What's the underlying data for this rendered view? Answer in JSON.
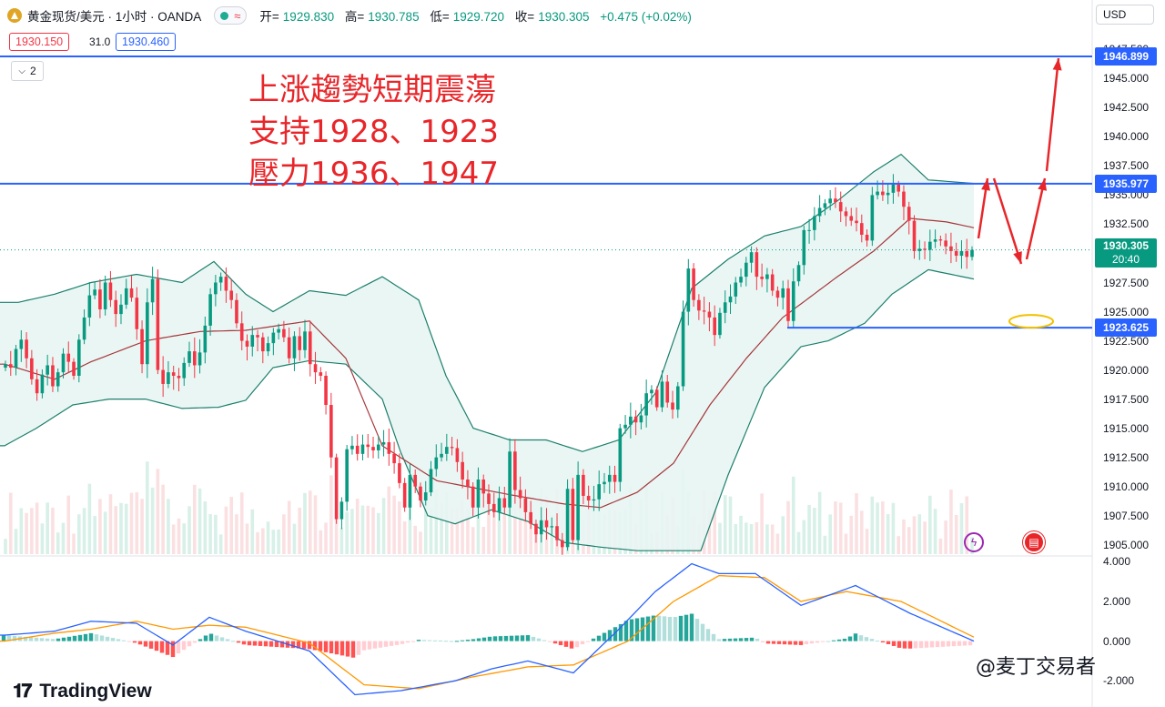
{
  "header": {
    "symbol": "黄金现货/美元 · 1小时 · OANDA",
    "open_label": "开=",
    "open": "1929.830",
    "high_label": "高=",
    "high": "1930.785",
    "low_label": "低=",
    "low": "1929.720",
    "close_label": "收=",
    "close": "1930.305",
    "change": "+0.475 (+0.02%)",
    "bid": "1930.150",
    "spread": "31.0",
    "ask": "1930.460",
    "indicator_count": "2",
    "currency": "USD"
  },
  "annotation": {
    "line1": "上涨趨勢短期震蕩",
    "line2": "支持1928、1923",
    "line3": "壓力1936、1947"
  },
  "price_labels": {
    "resistance_high": "1946.899",
    "resistance": "1935.977",
    "current": "1930.305",
    "countdown": "20:40",
    "support": "1923.625"
  },
  "watermark": "@麦丁交易者",
  "logo_text": "TradingView",
  "colors": {
    "up": "#089981",
    "down": "#f23645",
    "bollinger_fill": "#e8f5f3",
    "bollinger_band": "#1b7f6c",
    "bollinger_mid": "#a5373b",
    "level_line": "#2962ff",
    "annotation": "#e8262a",
    "macd_line": "#2962ff",
    "signal_line": "#ff9800"
  },
  "chart_data": [
    {
      "type": "candlestick",
      "title": "黄金现货/美元 · 1小时 · OANDA",
      "y_ticks": [
        "1947.500",
        "1945.000",
        "1942.500",
        "1940.000",
        "1937.500",
        "1935.000",
        "1932.500",
        "1930.000",
        "1927.500",
        "1925.000",
        "1922.500",
        "1920.000",
        "1917.500",
        "1915.000",
        "1912.500",
        "1910.000",
        "1907.500",
        "1905.000"
      ],
      "ylim": [
        1904.2,
        1947.6
      ],
      "closes": [
        1920.5,
        1920.2,
        1921.8,
        1922.6,
        1921.0,
        1919.2,
        1918.0,
        1919.6,
        1920.4,
        1918.6,
        1919.8,
        1921.4,
        1920.7,
        1919.5,
        1922.6,
        1924.5,
        1926.4,
        1926.9,
        1925.2,
        1927.5,
        1926.0,
        1924.8,
        1925.6,
        1927.0,
        1926.2,
        1923.5,
        1920.5,
        1925.8,
        1927.8,
        1920.0,
        1918.8,
        1919.8,
        1919.5,
        1919.3,
        1920.6,
        1921.6,
        1920.4,
        1921.5,
        1923.8,
        1926.5,
        1927.5,
        1928.0,
        1926.8,
        1926.0,
        1924.0,
        1922.5,
        1922.0,
        1923.0,
        1922.8,
        1921.6,
        1922.3,
        1923.2,
        1923.5,
        1922.8,
        1921.0,
        1922.9,
        1921.7,
        1923.3,
        1920.5,
        1919.8,
        1919.5,
        1917.0,
        1912.5,
        1907.2,
        1908.7,
        1913.2,
        1913.5,
        1912.8,
        1913.6,
        1913.4,
        1913.1,
        1913.6,
        1913.8,
        1912.8,
        1912.0,
        1910.3,
        1908.2,
        1911.0,
        1910.0,
        1908.8,
        1909.5,
        1911.5,
        1912.5,
        1912.8,
        1913.4,
        1913.3,
        1912.1,
        1910.6,
        1910.0,
        1908.2,
        1910.6,
        1909.4,
        1908.5,
        1907.8,
        1909.0,
        1908.2,
        1913.0,
        1909.7,
        1909.0,
        1907.8,
        1906.8,
        1905.9,
        1907.1,
        1906.5,
        1906.6,
        1905.4,
        1904.8,
        1909.8,
        1905.4,
        1911.0,
        1909.2,
        1908.8,
        1908.9,
        1910.2,
        1910.4,
        1911.0,
        1910.4,
        1915.0,
        1915.3,
        1916.0,
        1915.5,
        1916.1,
        1918.0,
        1918.3,
        1916.8,
        1919.0,
        1917.2,
        1916.6,
        1918.6,
        1925.0,
        1928.7,
        1926.0,
        1925.1,
        1925.0,
        1924.5,
        1923.0,
        1924.9,
        1925.8,
        1926.3,
        1927.5,
        1928.0,
        1929.2,
        1930.1,
        1928.0,
        1927.8,
        1928.2,
        1926.8,
        1926.2,
        1927.0,
        1924.2,
        1927.6,
        1929.0,
        1932.0,
        1932.0,
        1933.2,
        1933.9,
        1934.3,
        1934.7,
        1934.4,
        1933.6,
        1933.2,
        1932.8,
        1932.6,
        1931.6,
        1931.1,
        1935.0,
        1935.3,
        1935.0,
        1935.2,
        1935.9,
        1935.3,
        1934.0,
        1932.8,
        1930.2,
        1930.4,
        1930.3,
        1931.0,
        1931.2,
        1931.1,
        1930.6,
        1930.2,
        1929.8,
        1930.2,
        1929.7,
        1930.3
      ],
      "bollinger": {
        "upper_at_x": {
          "5": 1925.8,
          "20": 1925.8,
          "60": 1926.5,
          "100": 1927.5,
          "150": 1928.2,
          "200": 1927.5,
          "235": 1929.3,
          "270": 1926.5,
          "300": 1925.0,
          "340": 1926.8,
          "380": 1926.4,
          "420": 1928.0,
          "460": 1926.0,
          "490": 1919.5,
          "520": 1915.0,
          "560": 1914.0,
          "600": 1914.0,
          "640": 1913.0,
          "680": 1914.0,
          "720": 1918.0,
          "760": 1927.0,
          "800": 1929.5,
          "840": 1931.5,
          "880": 1932.3,
          "920": 1934.5,
          "960": 1937.0,
          "990": 1938.5,
          "1020": 1936.3,
          "1070": 1936.0
        },
        "lower_at_x": {
          "5": 1913.5,
          "40": 1915.0,
          "80": 1917.0,
          "120": 1917.5,
          "160": 1917.5,
          "200": 1916.7,
          "240": 1916.8,
          "270": 1917.4,
          "300": 1920.2,
          "340": 1920.8,
          "380": 1920.5,
          "420": 1917.5,
          "440": 1913.0,
          "470": 1907.5,
          "500": 1906.8,
          "540": 1908.0,
          "580": 1907.0,
          "620": 1905.2,
          "660": 1904.8,
          "700": 1904.5,
          "740": 1904.5,
          "770": 1904.5,
          "800": 1911.0,
          "840": 1918.5,
          "880": 1922.0,
          "910": 1922.5,
          "950": 1924.0,
          "980": 1926.5,
          "1020": 1928.6,
          "1070": 1927.8
        },
        "mid_at_x": {
          "5": 1920.5,
          "60": 1919.2,
          "100": 1920.7,
          "160": 1922.5,
          "220": 1923.3,
          "270": 1923.4,
          "340": 1924.2,
          "380": 1921.0,
          "420": 1913.5,
          "480": 1910.5,
          "560": 1909.3,
          "620": 1908.5,
          "660": 1908.2,
          "700": 1909.5,
          "740": 1912.0,
          "780": 1917.0,
          "820": 1921.0,
          "860": 1924.5,
          "920": 1928.0,
          "960": 1930.2,
          "1000": 1933.0,
          "1040": 1932.7,
          "1070": 1932.2
        }
      },
      "volume_note": "light-colored volume histogram behind candles"
    },
    {
      "type": "line",
      "title": "MACD",
      "y_ticks": [
        "4.000",
        "2.000",
        "0.000",
        "-2.000"
      ],
      "ylim": [
        -3.0,
        4.2
      ],
      "macd_at_x": {
        "5": 0.3,
        "60": 0.5,
        "100": 1.0,
        "150": 0.9,
        "190": -0.2,
        "230": 1.2,
        "270": 0.5,
        "340": -0.5,
        "390": -2.7,
        "440": -2.5,
        "500": -2.0,
        "540": -1.4,
        "580": -1.0,
        "630": -1.6,
        "680": 0.6,
        "720": 2.5,
        "760": 3.9,
        "790": 3.4,
        "830": 3.4,
        "880": 1.8,
        "940": 2.8,
        "1000": 1.4,
        "1070": 0.0
      },
      "signal_at_x": {
        "5": 0.0,
        "60": 0.4,
        "100": 0.6,
        "150": 1.0,
        "190": 0.6,
        "230": 0.8,
        "270": 0.7,
        "340": -0.1,
        "400": -2.2,
        "460": -2.4,
        "520": -1.8,
        "580": -1.3,
        "630": -1.2,
        "690": 0.0,
        "740": 2.0,
        "790": 3.3,
        "840": 3.2,
        "880": 2.0,
        "930": 2.5,
        "990": 2.0,
        "1070": 0.2
      },
      "histogram": "positive bars green, negative bars red; faded when shrinking"
    }
  ]
}
